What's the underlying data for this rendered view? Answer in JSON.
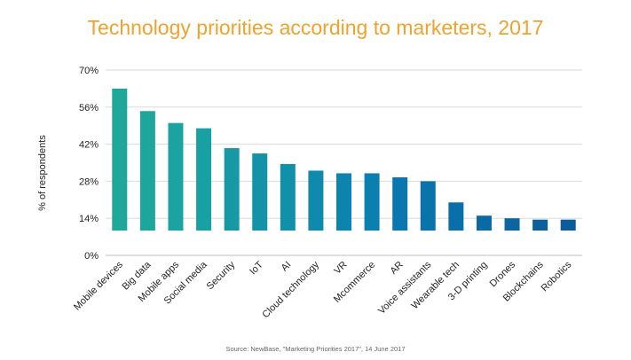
{
  "chart_data": {
    "type": "bar",
    "title": "Technology priorities according to marketers, 2017",
    "ylabel": "% of respondents",
    "xlabel": "",
    "ylim": [
      0,
      70
    ],
    "yticks": [
      "0%",
      "14%",
      "28%",
      "42%",
      "56%",
      "70%"
    ],
    "ytick_values": [
      0,
      14,
      28,
      42,
      56,
      70
    ],
    "grid": true,
    "categories": [
      "Mobile devices",
      "Big data",
      "Mobile apps",
      "Social media",
      "Security",
      "IoT",
      "AI",
      "Cloud technology",
      "VR",
      "Mcommerce",
      "AR",
      "Voice assistants",
      "Wearable tech",
      "3-D printing",
      "Drones",
      "Blockchains",
      "Robotics"
    ],
    "values": [
      63,
      54.5,
      50,
      48,
      40.5,
      38.5,
      34.5,
      32,
      31,
      31,
      29.5,
      28,
      20,
      15,
      14,
      13.5,
      13.5
    ],
    "bar_colors": [
      "#1fa79a",
      "#1fa69c",
      "#1aa3a0",
      "#18a0a3",
      "#1698a5",
      "#1493a8",
      "#1190ab",
      "#0f89ac",
      "#0d84ae",
      "#0b7fb0",
      "#0a78ae",
      "#0a73ab",
      "#0a6ea8",
      "#0b69a4",
      "#0c64a0",
      "#0d5f9c",
      "#0e5b99"
    ]
  },
  "source": "Source: NewBase, \"Marketing Priorities 2017\", 14 June 2017"
}
